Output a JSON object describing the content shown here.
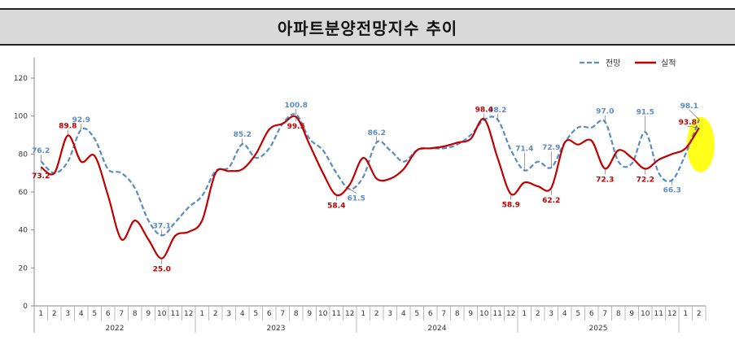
{
  "title": "아파트분양전망지수 추이",
  "chart_data": {
    "type": "line",
    "ylim": [
      0,
      120
    ],
    "yticks": [
      0,
      20,
      40,
      60,
      80,
      100,
      120
    ],
    "grid": false,
    "legend_position": "top-right",
    "months": [
      "1",
      "2",
      "3",
      "4",
      "5",
      "6",
      "7",
      "8",
      "9",
      "10",
      "11",
      "12",
      "1",
      "2",
      "3",
      "4",
      "5",
      "6",
      "7",
      "8",
      "9",
      "10",
      "11",
      "12",
      "1",
      "2",
      "3",
      "4",
      "5",
      "6",
      "7",
      "8",
      "9",
      "10",
      "11",
      "12",
      "1",
      "2",
      "3",
      "4",
      "5",
      "6",
      "7",
      "8",
      "9",
      "10",
      "11",
      "12",
      "1",
      "2"
    ],
    "years": [
      {
        "label": "2022",
        "start": 0,
        "count": 12
      },
      {
        "label": "2023",
        "start": 12,
        "count": 12
      },
      {
        "label": "2024",
        "start": 24,
        "count": 12
      },
      {
        "label": "2025",
        "start": 36,
        "count": 12
      }
    ],
    "series": [
      {
        "name": "전망",
        "color": "#5b8bbf",
        "dashed": true,
        "values": [
          76.2,
          70,
          76,
          92.9,
          88,
          72,
          70,
          62,
          45,
          37.1,
          44,
          52,
          58,
          71,
          73,
          85.2,
          78,
          83,
          96,
          100.8,
          88,
          82,
          70,
          61.5,
          68,
          86.2,
          82,
          76,
          82,
          83,
          83,
          85,
          90,
          98,
          98.2,
          82,
          71.4,
          76,
          72.9,
          86,
          94,
          94,
          97.0,
          76,
          75,
          91.5,
          70,
          66.3,
          80,
          98.1
        ]
      },
      {
        "name": "실적",
        "color": "#c00000",
        "dashed": false,
        "values": [
          73.2,
          70,
          89.8,
          76,
          79,
          58,
          35,
          45,
          35,
          25.0,
          37,
          39,
          45,
          70,
          71,
          72,
          80,
          93,
          96,
          99.5,
          85,
          70,
          58.4,
          64,
          78,
          67,
          67,
          72,
          82,
          83,
          84,
          86,
          88,
          98.4,
          78,
          58.9,
          65,
          63,
          62.2,
          86,
          85,
          87,
          72.3,
          82,
          78,
          72.2,
          77,
          80,
          83,
          93.8
        ]
      }
    ],
    "annotations": [
      {
        "series": 0,
        "index": 0,
        "text": "76.2"
      },
      {
        "series": 0,
        "index": 3,
        "text": "92.9"
      },
      {
        "series": 0,
        "index": 9,
        "text": "37.1"
      },
      {
        "series": 0,
        "index": 15,
        "text": "85.2"
      },
      {
        "series": 0,
        "index": 19,
        "text": "100.8"
      },
      {
        "series": 0,
        "index": 23,
        "text": "61.5"
      },
      {
        "series": 0,
        "index": 25,
        "text": "86.2"
      },
      {
        "series": 0,
        "index": 34,
        "text": "98.2"
      },
      {
        "series": 0,
        "index": 36,
        "text": "71.4"
      },
      {
        "series": 0,
        "index": 38,
        "text": "72.9"
      },
      {
        "series": 0,
        "index": 42,
        "text": "97.0"
      },
      {
        "series": 0,
        "index": 45,
        "text": "91.5"
      },
      {
        "series": 0,
        "index": 47,
        "text": "66.3"
      },
      {
        "series": 0,
        "index": 49,
        "text": "98.1"
      },
      {
        "series": 1,
        "index": 0,
        "text": "73.2"
      },
      {
        "series": 1,
        "index": 2,
        "text": "89.8"
      },
      {
        "series": 1,
        "index": 9,
        "text": "25.0"
      },
      {
        "series": 1,
        "index": 19,
        "text": "99.5"
      },
      {
        "series": 1,
        "index": 22,
        "text": "58.4"
      },
      {
        "series": 1,
        "index": 33,
        "text": "98.4"
      },
      {
        "series": 1,
        "index": 35,
        "text": "58.9"
      },
      {
        "series": 1,
        "index": 38,
        "text": "62.2"
      },
      {
        "series": 1,
        "index": 42,
        "text": "72.3"
      },
      {
        "series": 1,
        "index": 45,
        "text": "72.2"
      },
      {
        "series": 1,
        "index": 49,
        "text": "93.8"
      }
    ],
    "highlight": {
      "index": 49,
      "color": "#ffff00"
    }
  }
}
